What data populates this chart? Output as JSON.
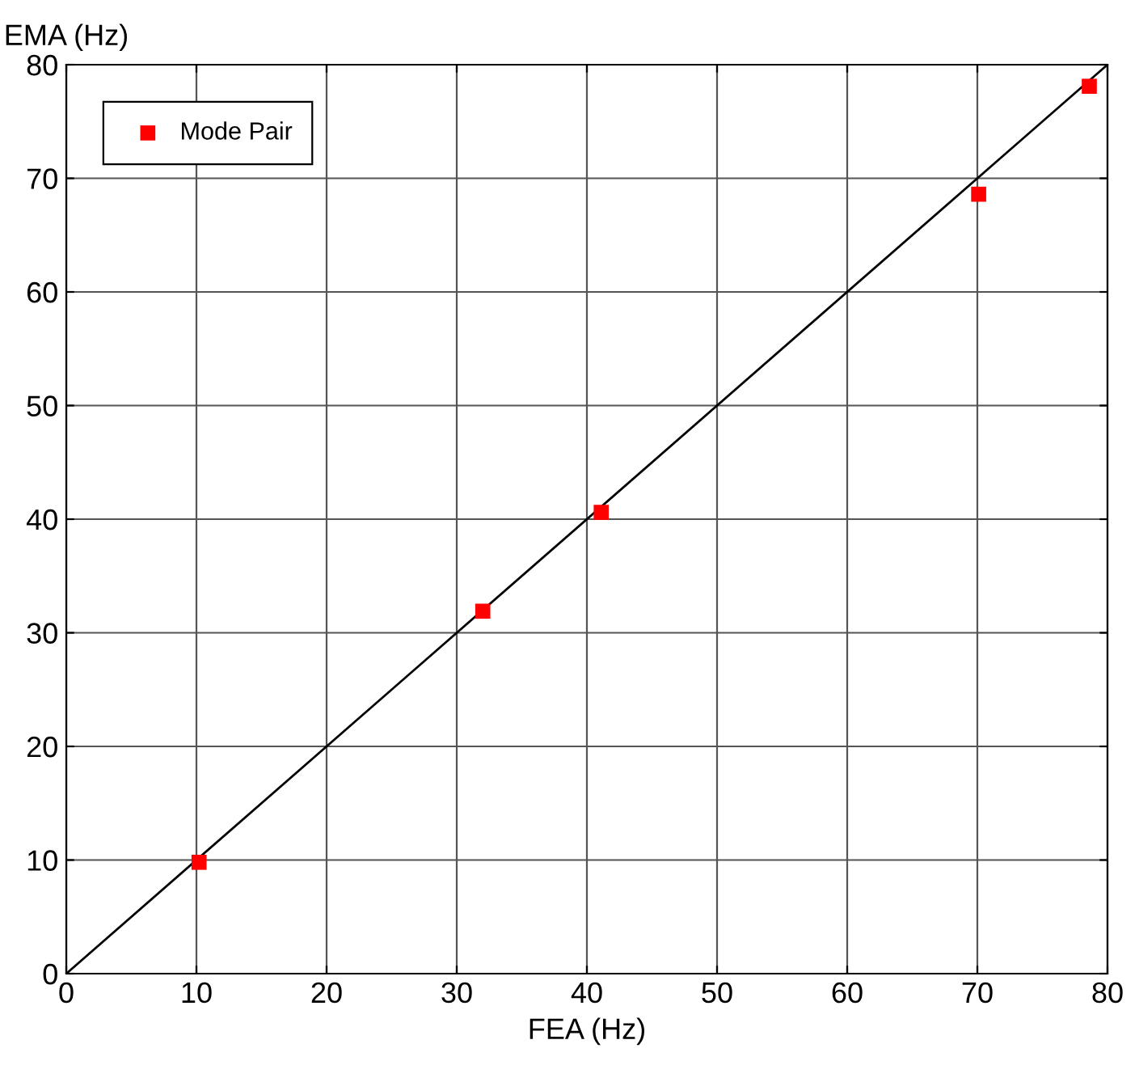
{
  "chart_data": {
    "type": "scatter",
    "xlabel": "FEA (Hz)",
    "ylabel": "EMA (Hz)",
    "x": [
      10.2,
      32.0,
      41.1,
      70.1,
      78.6
    ],
    "series": [
      {
        "name": "Mode Pair",
        "color": "#ff0000",
        "values": [
          9.8,
          31.9,
          40.6,
          68.6,
          78.1
        ],
        "marker": "square"
      },
      {
        "type": "line",
        "color": "#000000",
        "x": [
          0,
          80
        ],
        "values": [
          0,
          80
        ],
        "line_style": "solid",
        "marker": "none"
      }
    ],
    "xlim": [
      0,
      80
    ],
    "ylim": [
      0,
      80
    ],
    "xticks": [
      0,
      10,
      20,
      30,
      40,
      50,
      60,
      70,
      80
    ],
    "yticks": [
      0,
      10,
      20,
      30,
      40,
      50,
      60,
      70,
      80
    ],
    "grid": true,
    "legend": "top left"
  }
}
